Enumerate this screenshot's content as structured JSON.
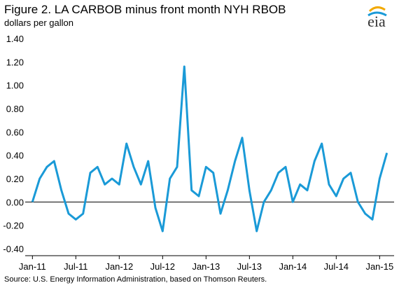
{
  "chart_data": {
    "type": "line",
    "title": "Figure 2.  LA CARBOB minus front month NYH RBOB",
    "subtitle": "dollars per gallon",
    "source": "Source:  U.S. Energy Information Administration, based on Thomson Reuters.",
    "logo": "eia",
    "x": [
      "2011-01",
      "2011-02",
      "2011-03",
      "2011-04",
      "2011-05",
      "2011-06",
      "2011-07",
      "2011-08",
      "2011-09",
      "2011-10",
      "2011-11",
      "2011-12",
      "2012-01",
      "2012-02",
      "2012-03",
      "2012-04",
      "2012-05",
      "2012-06",
      "2012-07",
      "2012-08",
      "2012-09",
      "2012-10",
      "2012-11",
      "2012-12",
      "2013-01",
      "2013-02",
      "2013-03",
      "2013-04",
      "2013-05",
      "2013-06",
      "2013-07",
      "2013-08",
      "2013-09",
      "2013-10",
      "2013-11",
      "2013-12",
      "2014-01",
      "2014-02",
      "2014-03",
      "2014-04",
      "2014-05",
      "2014-06",
      "2014-07",
      "2014-08",
      "2014-09",
      "2014-10",
      "2014-11",
      "2014-12",
      "2015-01",
      "2015-02"
    ],
    "series": [
      {
        "name": "LA CARBOB minus front month NYH RBOB",
        "color": "#1a9ad7",
        "values": [
          0.0,
          0.2,
          0.3,
          0.35,
          0.1,
          -0.1,
          -0.15,
          -0.1,
          0.25,
          0.3,
          0.15,
          0.2,
          0.15,
          0.5,
          0.3,
          0.15,
          0.35,
          -0.05,
          -0.25,
          0.2,
          0.3,
          1.16,
          0.1,
          0.05,
          0.3,
          0.25,
          -0.1,
          0.1,
          0.35,
          0.55,
          0.1,
          -0.25,
          0.0,
          0.1,
          0.25,
          0.3,
          0.0,
          0.15,
          0.1,
          0.35,
          0.5,
          0.15,
          0.05,
          0.2,
          0.25,
          0.0,
          -0.1,
          -0.15,
          0.2,
          0.42
        ]
      }
    ],
    "xlim": [
      "2010-12",
      "2015-03"
    ],
    "xticks": [
      {
        "value": "2011-01",
        "label": "Jan-11"
      },
      {
        "value": "2011-07",
        "label": "Jul-11"
      },
      {
        "value": "2012-01",
        "label": "Jan-12"
      },
      {
        "value": "2012-07",
        "label": "Jul-12"
      },
      {
        "value": "2013-01",
        "label": "Jan-13"
      },
      {
        "value": "2013-07",
        "label": "Jul-13"
      },
      {
        "value": "2014-01",
        "label": "Jan-14"
      },
      {
        "value": "2014-07",
        "label": "Jul-14"
      },
      {
        "value": "2015-01",
        "label": "Jan-15"
      }
    ],
    "ylim": [
      -0.4,
      1.4
    ],
    "yticks": [
      {
        "value": -0.4,
        "label": "-0.40"
      },
      {
        "value": -0.2,
        "label": "-0.20"
      },
      {
        "value": 0,
        "label": "0.00"
      },
      {
        "value": 0.2,
        "label": "0.20"
      },
      {
        "value": 0.4,
        "label": "0.40"
      },
      {
        "value": 0.6,
        "label": "0.60"
      },
      {
        "value": 0.8,
        "label": "0.80"
      },
      {
        "value": 1.0,
        "label": "1.00"
      },
      {
        "value": 1.2,
        "label": "1.20"
      },
      {
        "value": 1.4,
        "label": "1.40"
      }
    ],
    "grid": false
  }
}
